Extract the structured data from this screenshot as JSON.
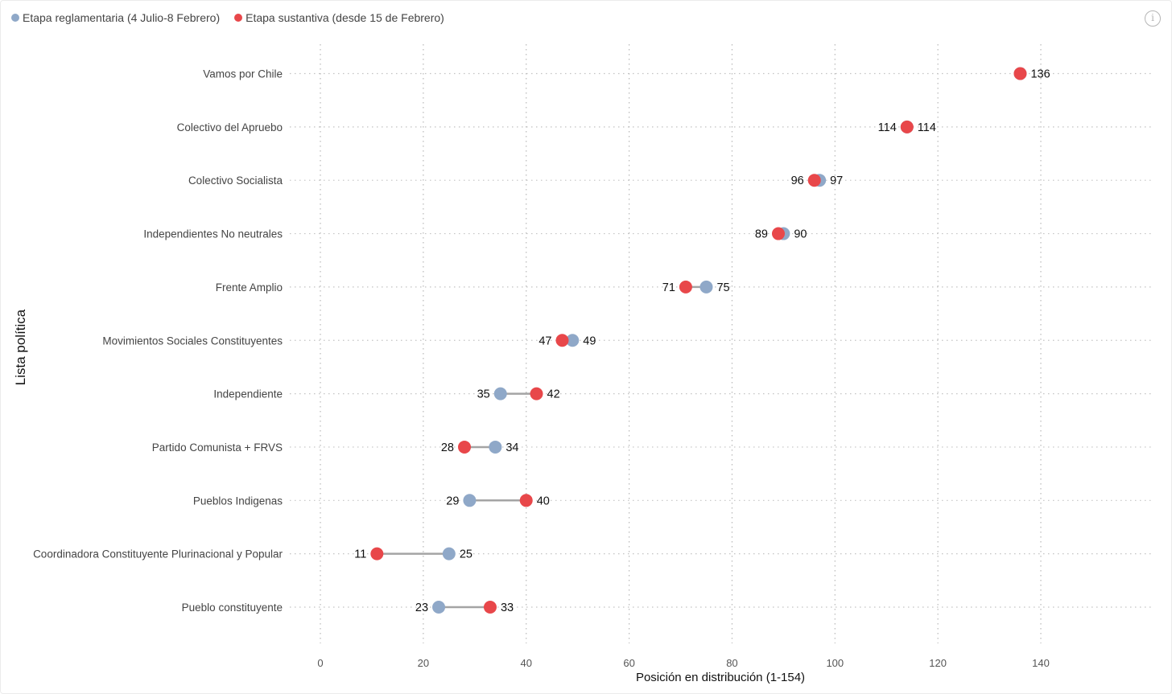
{
  "chart_data": {
    "type": "dumbbell",
    "title": "",
    "xlabel": "Posición en distribución (1-154)",
    "ylabel": "Lista política",
    "xlim": [
      0,
      154
    ],
    "xticks": [
      0,
      20,
      40,
      60,
      80,
      100,
      120,
      140
    ],
    "grid": true,
    "legend_position": "top-left",
    "series": [
      {
        "name": "Etapa reglamentaria (4 Julio-8 Febrero)",
        "color": "#8fa8c8"
      },
      {
        "name": "Etapa sustantiva (desde 15 de Febrero)",
        "color": "#e8474a"
      }
    ],
    "categories": [
      "Vamos por Chile",
      "Colectivo del Apruebo",
      "Colectivo Socialista",
      "Independientes No neutrales",
      "Frente Amplio",
      "Movimientos Sociales Constituyentes",
      "Independiente",
      "Partido Comunista + FRVS",
      "Pueblos Indigenas",
      "Coordinadora Constituyente Plurinacional y Popular",
      "Pueblo constituyente"
    ],
    "reglamentaria": [
      136,
      114,
      97,
      90,
      75,
      49,
      35,
      34,
      29,
      25,
      23
    ],
    "sustantiva": [
      136,
      114,
      96,
      89,
      71,
      47,
      42,
      28,
      40,
      11,
      33
    ],
    "point_labels": [
      [
        "136"
      ],
      [
        "114",
        "114"
      ],
      [
        "96",
        "97"
      ],
      [
        "89",
        "90"
      ],
      [
        "71",
        "75"
      ],
      [
        "47",
        "49"
      ],
      [
        "35",
        "42"
      ],
      [
        "28",
        "34"
      ],
      [
        "29",
        "40"
      ],
      [
        "11",
        "25"
      ],
      [
        "23",
        "33"
      ]
    ]
  },
  "info_icon": "info-icon",
  "info_glyph": "i"
}
